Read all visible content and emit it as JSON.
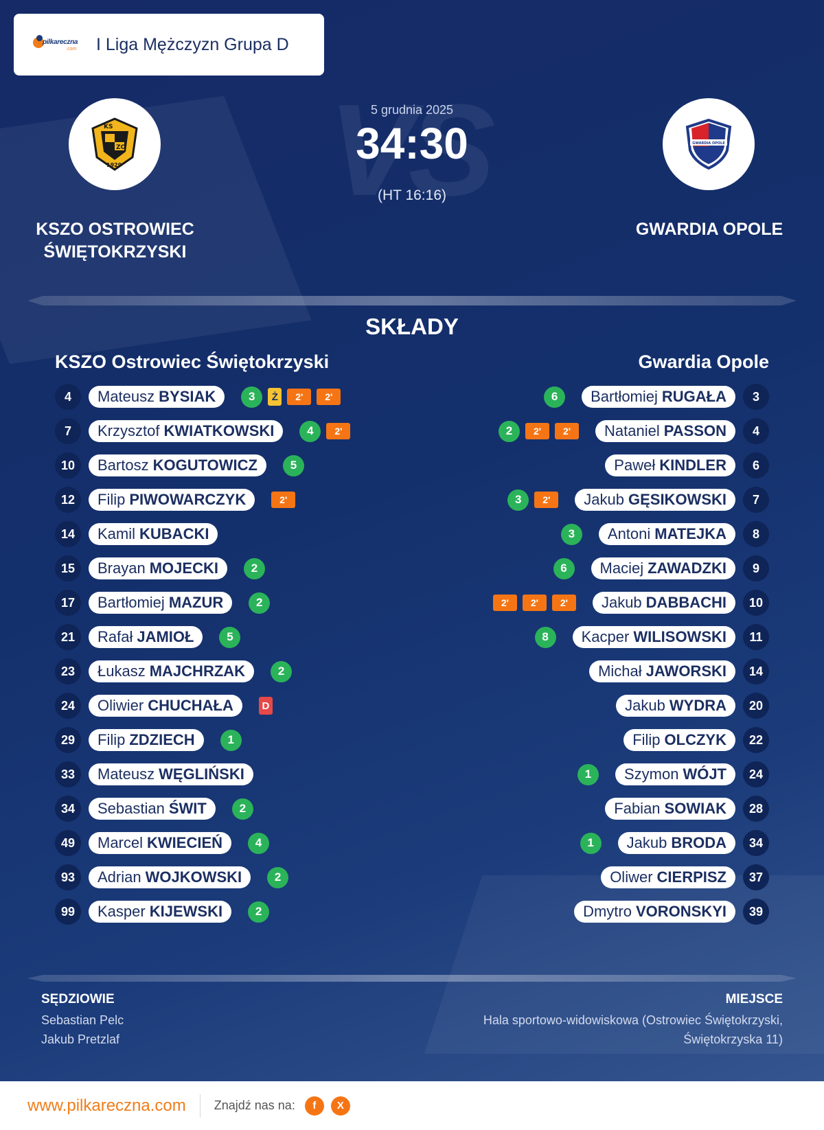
{
  "league": {
    "name": "I Liga Mężczyzn Grupa D",
    "logo_text": "pilkareczna",
    "logo_suffix": ".com"
  },
  "match": {
    "date": "5 grudnia 2025",
    "score": "34:30",
    "halftime": "(HT 16:16)",
    "vs_watermark": "VS",
    "home": {
      "name_line1": "KSZO OSTROWIEC",
      "name_line2": "ŚWIĘTOKRZYSKI",
      "crest_text_top": "KS",
      "crest_text_mid": "ZO",
      "crest_year": "1929"
    },
    "away": {
      "name": "GWARDIA OPOLE",
      "crest_text": "GWARDIA OPOLE"
    }
  },
  "lineups": {
    "heading": "SKŁADY",
    "home_team": "KSZO Ostrowiec Świętokrzyski",
    "away_team": "Gwardia Opole",
    "home": [
      {
        "number": "4",
        "first": "Mateusz",
        "last": "BYSIAK",
        "badges": [
          {
            "type": "goal",
            "text": "3"
          },
          {
            "type": "yellow",
            "text": "Ż"
          },
          {
            "type": "two",
            "text": "2'"
          },
          {
            "type": "two",
            "text": "2'"
          }
        ]
      },
      {
        "number": "7",
        "first": "Krzysztof",
        "last": "KWIATKOWSKI",
        "badges": [
          {
            "type": "goal",
            "text": "4"
          },
          {
            "type": "two",
            "text": "2'"
          }
        ]
      },
      {
        "number": "10",
        "first": "Bartosz",
        "last": "KOGUTOWICZ",
        "badges": [
          {
            "type": "goal",
            "text": "5"
          }
        ]
      },
      {
        "number": "12",
        "first": "Filip",
        "last": "PIWOWARCZYK",
        "badges": [
          {
            "type": "two",
            "text": "2'"
          }
        ]
      },
      {
        "number": "14",
        "first": "Kamil",
        "last": "KUBACKI",
        "badges": []
      },
      {
        "number": "15",
        "first": "Brayan",
        "last": "MOJECKI",
        "badges": [
          {
            "type": "goal",
            "text": "2"
          }
        ]
      },
      {
        "number": "17",
        "first": "Bartłomiej",
        "last": "MAZUR",
        "badges": [
          {
            "type": "goal",
            "text": "2"
          }
        ]
      },
      {
        "number": "21",
        "first": "Rafał",
        "last": "JAMIOŁ",
        "badges": [
          {
            "type": "goal",
            "text": "5"
          }
        ]
      },
      {
        "number": "23",
        "first": "Łukasz",
        "last": "MAJCHRZAK",
        "badges": [
          {
            "type": "goal",
            "text": "2"
          }
        ]
      },
      {
        "number": "24",
        "first": "Oliwier",
        "last": "CHUCHAŁA",
        "badges": [
          {
            "type": "red",
            "text": "D"
          }
        ]
      },
      {
        "number": "29",
        "first": "Filip",
        "last": "ZDZIECH",
        "badges": [
          {
            "type": "goal",
            "text": "1"
          }
        ]
      },
      {
        "number": "33",
        "first": "Mateusz",
        "last": "WĘGLIŃSKI",
        "badges": []
      },
      {
        "number": "34",
        "first": "Sebastian",
        "last": "ŚWIT",
        "badges": [
          {
            "type": "goal",
            "text": "2"
          }
        ]
      },
      {
        "number": "49",
        "first": "Marcel",
        "last": "KWIECIEŃ",
        "badges": [
          {
            "type": "goal",
            "text": "4"
          }
        ]
      },
      {
        "number": "93",
        "first": "Adrian",
        "last": "WOJKOWSKI",
        "badges": [
          {
            "type": "goal",
            "text": "2"
          }
        ]
      },
      {
        "number": "99",
        "first": "Kasper",
        "last": "KIJEWSKI",
        "badges": [
          {
            "type": "goal",
            "text": "2"
          }
        ]
      }
    ],
    "away": [
      {
        "number": "3",
        "first": "Bartłomiej",
        "last": "RUGAŁA",
        "badges": [
          {
            "type": "goal",
            "text": "6"
          }
        ]
      },
      {
        "number": "4",
        "first": "Nataniel",
        "last": "PASSON",
        "badges": [
          {
            "type": "two",
            "text": "2'"
          },
          {
            "type": "two",
            "text": "2'"
          },
          {
            "type": "goal",
            "text": "2"
          }
        ]
      },
      {
        "number": "6",
        "first": "Paweł",
        "last": "KINDLER",
        "badges": []
      },
      {
        "number": "7",
        "first": "Jakub",
        "last": "GĘSIKOWSKI",
        "badges": [
          {
            "type": "two",
            "text": "2'"
          },
          {
            "type": "goal",
            "text": "3"
          }
        ]
      },
      {
        "number": "8",
        "first": "Antoni",
        "last": "MATEJKA",
        "badges": [
          {
            "type": "goal",
            "text": "3"
          }
        ]
      },
      {
        "number": "9",
        "first": "Maciej",
        "last": "ZAWADZKI",
        "badges": [
          {
            "type": "goal",
            "text": "6"
          }
        ]
      },
      {
        "number": "10",
        "first": "Jakub",
        "last": "DABBACHI",
        "badges": [
          {
            "type": "two",
            "text": "2'"
          },
          {
            "type": "two",
            "text": "2'"
          },
          {
            "type": "two",
            "text": "2'"
          }
        ]
      },
      {
        "number": "11",
        "first": "Kacper",
        "last": "WILISOWSKI",
        "badges": [
          {
            "type": "goal",
            "text": "8"
          }
        ]
      },
      {
        "number": "14",
        "first": "Michał",
        "last": "JAWORSKI",
        "badges": []
      },
      {
        "number": "20",
        "first": "Jakub",
        "last": "WYDRA",
        "badges": []
      },
      {
        "number": "22",
        "first": "Filip",
        "last": "OLCZYK",
        "badges": []
      },
      {
        "number": "24",
        "first": "Szymon",
        "last": "WÓJT",
        "badges": [
          {
            "type": "goal",
            "text": "1"
          }
        ]
      },
      {
        "number": "28",
        "first": "Fabian",
        "last": "SOWIAK",
        "badges": []
      },
      {
        "number": "34",
        "first": "Jakub",
        "last": "BRODA",
        "badges": [
          {
            "type": "goal",
            "text": "1"
          }
        ]
      },
      {
        "number": "37",
        "first": "Oliwer",
        "last": "CIERPISZ",
        "badges": []
      },
      {
        "number": "39",
        "first": "Dmytro",
        "last": "VORONSKYI",
        "badges": []
      }
    ]
  },
  "officials": {
    "heading": "SĘDZIOWIE",
    "names": [
      "Sebastian Pelc",
      "Jakub Pretzlaf"
    ]
  },
  "venue": {
    "heading": "MIEJSCE",
    "line1": "Hala sportowo-widowiskowa (Ostrowiec Świętokrzyski,",
    "line2": "Świętokrzyska 11)"
  },
  "footer": {
    "site": "www.pilkareczna.com",
    "find_us": "Znajdź nas na:",
    "social": [
      {
        "icon": "facebook-icon",
        "text": "f"
      },
      {
        "icon": "x-icon",
        "text": "X"
      }
    ]
  },
  "colors": {
    "goal": "#2bb35a",
    "suspension": "#f57515",
    "yellow_card": "#f7c331",
    "red_card": "#e74848",
    "brand_orange": "#f07d1a",
    "navy": "#14295f"
  }
}
